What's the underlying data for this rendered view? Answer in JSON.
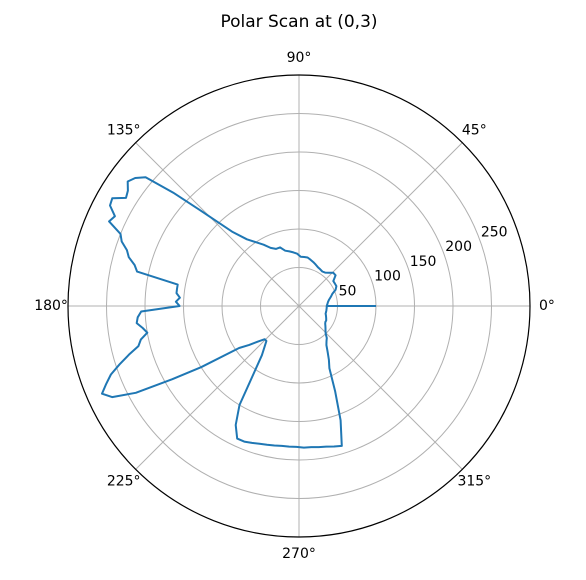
{
  "chart_data": {
    "type": "polar-line",
    "title": "Polar Scan at (0,3)",
    "angle_unit": "degrees",
    "angle_ticks": [
      "0°",
      "45°",
      "90°",
      "135°",
      "180°",
      "225°",
      "270°",
      "315°"
    ],
    "radial_ticks": [
      50,
      100,
      150,
      200,
      250
    ],
    "rlim": [
      0,
      300
    ],
    "grid": true,
    "colors": {
      "series": "#1f77b4",
      "grid": "#b0b0b0",
      "frame": "#000000"
    },
    "series": [
      {
        "theta": [
          0,
          0,
          4,
          8,
          12,
          16,
          20,
          24,
          28,
          32,
          36,
          40,
          44,
          48,
          52,
          56,
          60,
          64,
          68,
          72,
          76,
          80,
          84,
          88,
          92,
          96,
          100,
          104,
          108,
          112,
          116,
          120,
          124,
          128,
          132,
          136,
          138,
          140,
          142,
          144,
          146,
          148,
          150,
          152,
          154,
          156,
          158,
          160,
          162,
          164,
          166,
          168,
          170,
          172,
          174,
          176,
          178,
          180,
          182,
          184,
          186,
          188,
          190,
          192,
          194,
          196,
          198,
          200,
          202,
          204,
          206,
          208,
          210,
          212,
          215,
          218,
          221,
          224,
          227,
          230,
          233,
          236,
          239,
          242,
          245,
          248,
          251,
          254,
          257,
          260,
          263,
          266,
          269,
          272,
          275,
          278,
          281,
          284,
          287,
          290,
          293,
          296,
          299,
          302,
          305,
          308,
          311,
          314,
          317,
          320,
          323,
          326,
          329,
          332,
          335,
          338,
          341,
          344,
          347,
          350,
          353,
          356,
          360
        ],
        "r": [
          100,
          36,
          37,
          38,
          40,
          43,
          46,
          52,
          55,
          55,
          55,
          62,
          62,
          58,
          55,
          54,
          55,
          56,
          58,
          60,
          62,
          64,
          64,
          64,
          68,
          70,
          72,
          74,
          80,
          80,
          84,
          92,
          100,
          110,
          130,
          180,
          220,
          260,
          270,
          275,
          268,
          265,
          280,
          278,
          266,
          270,
          250,
          245,
          235,
          230,
          220,
          215,
          160,
          160,
          160,
          155,
          160,
          155,
          205,
          210,
          212,
          205,
          200,
          210,
          215,
          230,
          245,
          260,
          270,
          280,
          270,
          240,
          190,
          150,
          95,
          82,
          70,
          62,
          62,
          70,
          80,
          104,
          150,
          175,
          190,
          190,
          188,
          186,
          185,
          184,
          183,
          183,
          183,
          184,
          184,
          185,
          186,
          188,
          190,
          158,
          120,
          90,
          80,
          70,
          62,
          58,
          55,
          50,
          47,
          45,
          43,
          41,
          40,
          40,
          39,
          38,
          37,
          36,
          36,
          36,
          36,
          36,
          36
        ]
      }
    ]
  }
}
